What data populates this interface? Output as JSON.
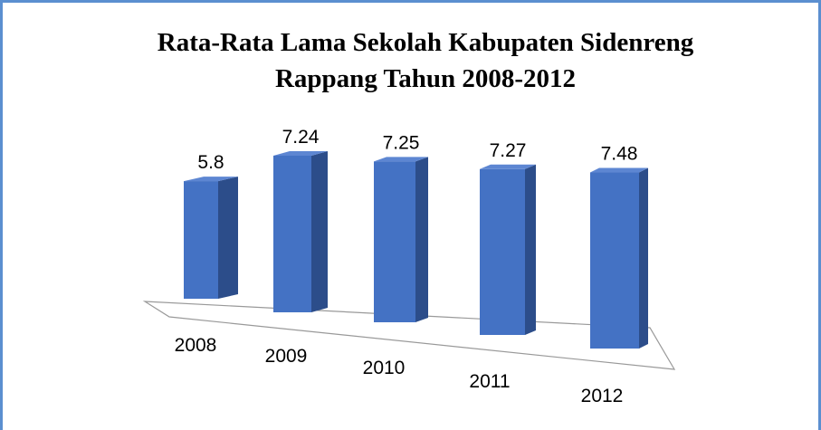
{
  "chart_data": {
    "type": "bar3d",
    "title": [
      "Rata-Rata Lama Sekolah Kabupaten Sidenreng",
      "Rappang Tahun 2008-2012"
    ],
    "categories": [
      "2008",
      "2009",
      "2010",
      "2011",
      "2012"
    ],
    "values": [
      5.8,
      7.24,
      7.25,
      7.27,
      7.48
    ],
    "color": "#4472c4"
  }
}
